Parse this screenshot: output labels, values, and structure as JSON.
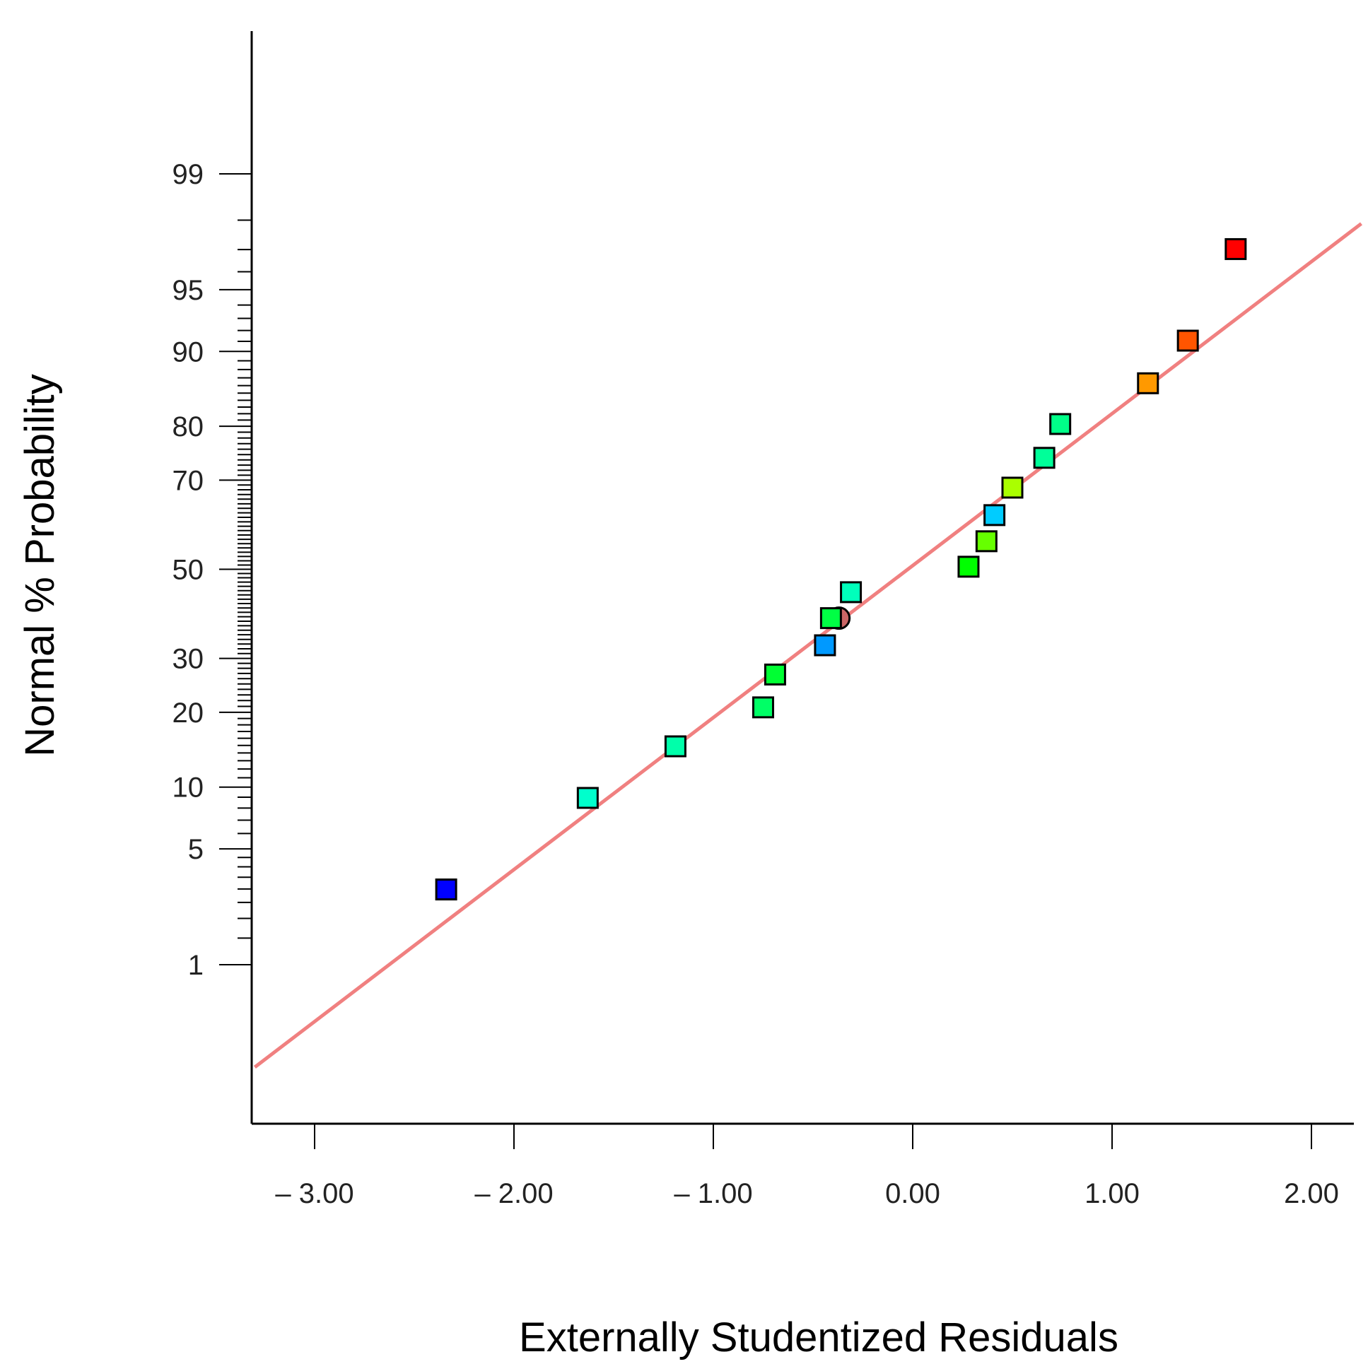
{
  "chart_data": {
    "type": "scatter",
    "title": "",
    "xlabel": "Externally Studentized Residuals",
    "ylabel": "Normal % Probability",
    "xlim": [
      -3.3,
      2.25
    ],
    "x_ticks": [
      -3,
      -2,
      -1,
      0,
      1,
      2
    ],
    "x_tick_labels": [
      "– 3.00",
      "– 2.00",
      "– 1.00",
      "0.00",
      "1.00",
      "2.00"
    ],
    "y_scale": "normal-probability",
    "y_ticks": [
      1,
      5,
      10,
      20,
      30,
      50,
      70,
      80,
      90,
      95,
      99
    ],
    "y_tick_labels": [
      "1",
      "5",
      "10",
      "20",
      "30",
      "50",
      "70",
      "80",
      "90",
      "95",
      "99"
    ],
    "reference_line": {
      "x": [
        -3.3,
        2.25
      ],
      "y": [
        0.17,
        97.9
      ],
      "color": "#f08080"
    },
    "points": [
      {
        "x": -2.34,
        "y": 2.98,
        "color": "#0000ff"
      },
      {
        "x": -1.63,
        "y": 8.93,
        "color": "#00ffcc"
      },
      {
        "x": -1.19,
        "y": 14.88,
        "color": "#00ffaa"
      },
      {
        "x": -0.75,
        "y": 20.83,
        "color": "#00ff66"
      },
      {
        "x": -0.69,
        "y": 26.79,
        "color": "#00ff33"
      },
      {
        "x": -0.44,
        "y": 32.74,
        "color": "#0099ff"
      },
      {
        "x": -0.37,
        "y": 38.69,
        "color": "#cc6666",
        "shape": "circle"
      },
      {
        "x": -0.41,
        "y": 38.69,
        "color": "#00ff44"
      },
      {
        "x": -0.31,
        "y": 44.64,
        "color": "#00ffbb"
      },
      {
        "x": 0.28,
        "y": 50.6,
        "color": "#00ff00"
      },
      {
        "x": 0.37,
        "y": 56.55,
        "color": "#66ff00"
      },
      {
        "x": 0.41,
        "y": 62.5,
        "color": "#00ccff"
      },
      {
        "x": 0.5,
        "y": 68.45,
        "color": "#aaff00"
      },
      {
        "x": 0.66,
        "y": 74.4,
        "color": "#00ff99"
      },
      {
        "x": 0.74,
        "y": 80.36,
        "color": "#00ff88"
      },
      {
        "x": 1.18,
        "y": 86.31,
        "color": "#ff9900"
      },
      {
        "x": 1.38,
        "y": 91.07,
        "color": "#ff5500"
      },
      {
        "x": 1.62,
        "y": 97.02,
        "color": "#ff0000"
      }
    ]
  }
}
